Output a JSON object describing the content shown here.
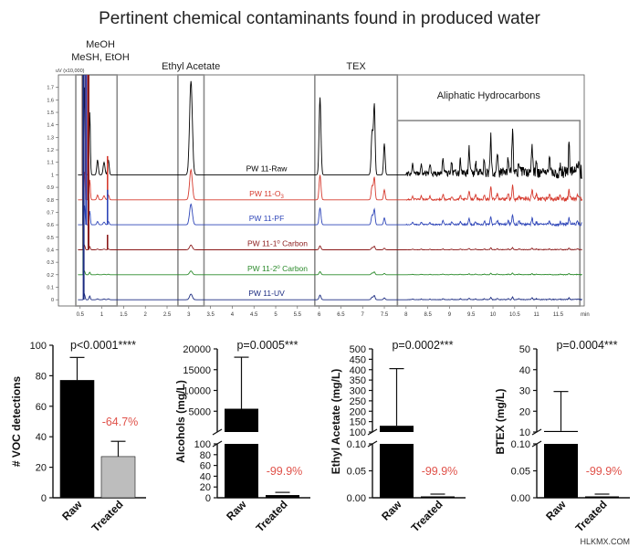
{
  "title": "Pertinent chemical contaminants found in produced water",
  "watermark": "HLKMX.COM",
  "chart_data": [
    {
      "type": "line",
      "y_unit_label": "uV (x10,000)",
      "x_unit_label": "min",
      "x_ticks": [
        0.5,
        1.0,
        1.5,
        2.0,
        2.5,
        3.0,
        3.5,
        4.0,
        4.5,
        5.0,
        5.5,
        6.0,
        6.5,
        7.0,
        7.5,
        8.0,
        8.5,
        9.0,
        9.5,
        10.0,
        10.5,
        11.0,
        11.5
      ],
      "y_ticks": [
        0.0,
        0.1,
        0.2,
        0.3,
        0.4,
        0.5,
        0.6,
        0.7,
        0.8,
        0.9,
        1.0,
        1.1,
        1.2,
        1.3,
        1.4,
        1.5,
        1.6,
        1.7
      ],
      "xlim": [
        0.0,
        12.1
      ],
      "ylim": [
        -0.05,
        1.8
      ],
      "regions": [
        {
          "label": "MeOH",
          "label2": "MeSH, EtOH",
          "x0": 0.4,
          "x1": 1.35
        },
        {
          "label": "Ethyl Acetate",
          "x0": 2.75,
          "x1": 3.35
        },
        {
          "label": "TEX",
          "x0": 5.9,
          "x1": 7.8
        },
        {
          "label": "Aliphatic Hydrocarbons",
          "x0": 7.8,
          "x1": 12.0
        }
      ],
      "series": [
        {
          "name": "PW 11-Raw",
          "name_html": "PW 11-Raw",
          "color": "#000000",
          "baseline": 1.0,
          "scale": 1.0
        },
        {
          "name": "PW 11-O3",
          "name_main": "PW 11-O",
          "name_sub": "3",
          "color": "#d63b2f",
          "baseline": 0.8,
          "scale": 0.32
        },
        {
          "name": "PW 11-PF",
          "name_main": "PW 11-PF",
          "color": "#2e45b8",
          "baseline": 0.6,
          "scale": 0.22
        },
        {
          "name": "PW 11-1° Carbon",
          "name_main": "PW 11-1",
          "name_sup": "o",
          "name_tail": " Carbon",
          "color": "#8b1a1a",
          "baseline": 0.4,
          "scale": 0.05
        },
        {
          "name": "PW 11-2° Carbon",
          "name_main": "PW 11-2",
          "name_sup": "o",
          "name_tail": " Carbon",
          "color": "#2a8a2a",
          "baseline": 0.2,
          "scale": 0.04
        },
        {
          "name": "PW 11-UV",
          "name_main": "PW 11-UV",
          "color": "#1a2a80",
          "baseline": 0.0,
          "scale": 0.06
        }
      ]
    },
    {
      "type": "bar",
      "ylabel": "# VOC detections",
      "categories": [
        "Raw",
        "Treated"
      ],
      "values": [
        77,
        27
      ],
      "errors": [
        15,
        10
      ],
      "colors": [
        "#000000",
        "#bdbdbd"
      ],
      "ylim": [
        0,
        100
      ],
      "y_ticks": [
        0,
        20,
        40,
        60,
        80,
        100
      ],
      "p_value_label": "p<0.0001****",
      "reduction_label": "-64.7%"
    },
    {
      "type": "bar",
      "ylabel": "Alcohols (mg/L)",
      "categories": [
        "Raw",
        "Treated"
      ],
      "values": [
        5600,
        5
      ],
      "errors": [
        12400,
        5
      ],
      "colors": [
        "#000000",
        "#000000"
      ],
      "broken_axis": true,
      "lower_ylim": [
        0,
        100
      ],
      "lower_ticks": [
        0,
        20,
        40,
        60,
        80,
        100
      ],
      "upper_ylim": [
        0,
        20000
      ],
      "upper_ticks": [
        5000,
        10000,
        15000,
        20000
      ],
      "p_value_label": "p=0.0005***",
      "reduction_label": "-99.9%"
    },
    {
      "type": "bar",
      "ylabel": "Ethyl Acetate (mg/L)",
      "categories": [
        "Raw",
        "Treated"
      ],
      "values": [
        130,
        0.002
      ],
      "errors": [
        275,
        0.002
      ],
      "colors": [
        "#000000",
        "#000000"
      ],
      "broken_axis": true,
      "lower_ylim": [
        0,
        0.1
      ],
      "lower_ticks": [
        "0.00",
        "0.05",
        "0.10"
      ],
      "lower_tick_values": [
        0,
        0.05,
        0.1
      ],
      "upper_ylim": [
        100,
        500
      ],
      "upper_ticks": [
        100,
        150,
        200,
        250,
        300,
        350,
        400,
        450,
        500
      ],
      "p_value_label": "p=0.0002***",
      "reduction_label": "-99.9%"
    },
    {
      "type": "bar",
      "ylabel": "BTEX (mg/L)",
      "categories": [
        "Raw",
        "Treated"
      ],
      "values": [
        10.5,
        0.002
      ],
      "errors": [
        19,
        0.002
      ],
      "colors": [
        "#000000",
        "#000000"
      ],
      "broken_axis": true,
      "lower_ylim": [
        0,
        0.1
      ],
      "lower_ticks": [
        "0.00",
        "0.05",
        "0.10"
      ],
      "lower_tick_values": [
        0,
        0.05,
        0.1
      ],
      "upper_ylim": [
        10,
        50
      ],
      "upper_ticks": [
        10,
        20,
        30,
        40,
        50
      ],
      "p_value_label": "p=0.0004***",
      "reduction_label": "-99.9%"
    }
  ]
}
